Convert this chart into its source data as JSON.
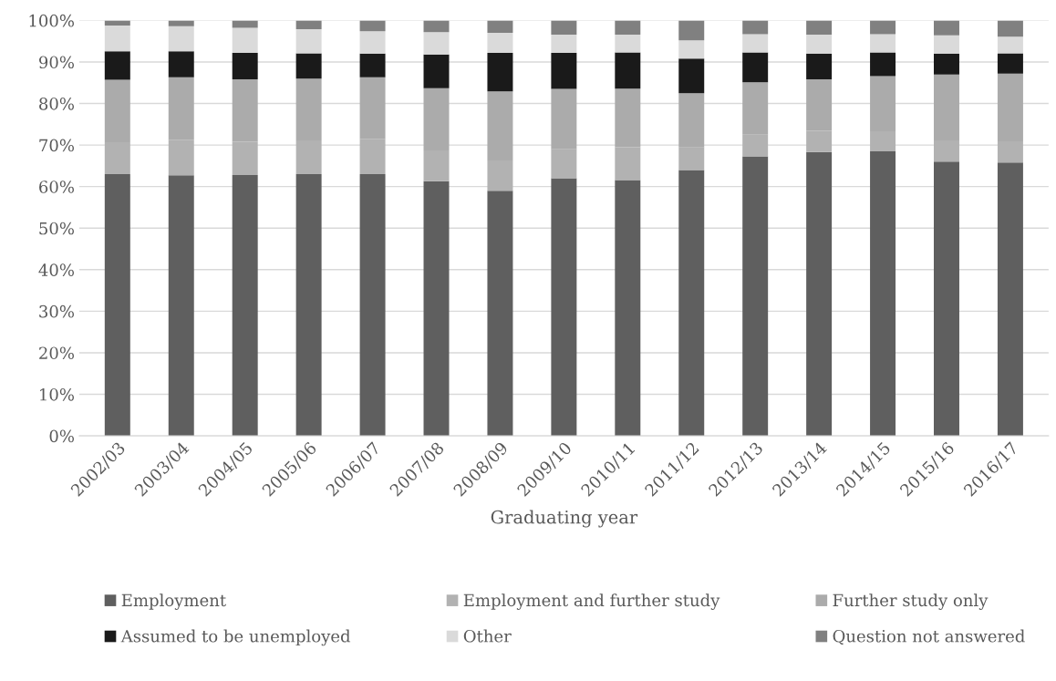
{
  "chart_data": {
    "type": "bar",
    "stacked": true,
    "xlabel": "Graduating year",
    "categories": [
      "2002/03",
      "2003/04",
      "2004/05",
      "2005/06",
      "2006/07",
      "2007/08",
      "2008/09",
      "2009/10",
      "2010/11",
      "2011/12",
      "2012/13",
      "2013/14",
      "2014/15",
      "2015/16",
      "2016/17"
    ],
    "series": [
      {
        "name": "Employment",
        "color": "#5f5f5f",
        "values": [
          63,
          62.7,
          62.8,
          63,
          63,
          61.3,
          59,
          62,
          61.6,
          64,
          67.3,
          68.3,
          68.5,
          66,
          65.8
        ]
      },
      {
        "name": "Employment and further study",
        "color": "#b2b2b2",
        "values": [
          7.7,
          8.6,
          8.0,
          8.1,
          8.5,
          7.4,
          7.3,
          7,
          7.9,
          5.4,
          5.2,
          5.1,
          4.8,
          5.1,
          5.1
        ]
      },
      {
        "name": "Further study only",
        "color": "#ababab",
        "values": [
          15,
          15,
          15,
          14.9,
          14.8,
          15,
          16.6,
          14.5,
          14.1,
          13.1,
          12.6,
          12.4,
          13.3,
          15.9,
          16.3
        ]
      },
      {
        "name": "Assumed to be unemployed",
        "color": "#1a1a1a",
        "values": [
          6.9,
          6.3,
          6.4,
          6.1,
          5.7,
          8.1,
          9.3,
          8.7,
          8.7,
          8.3,
          7.2,
          6.2,
          5.7,
          5,
          4.9
        ]
      },
      {
        "name": "Other",
        "color": "#dadada",
        "values": [
          6.2,
          6.0,
          6.0,
          5.8,
          5.4,
          5.4,
          4.8,
          4.4,
          4.3,
          4.4,
          4.4,
          4.6,
          4.4,
          4.4,
          4.0
        ]
      },
      {
        "name": "Question not answered",
        "color": "#808080",
        "values": [
          1.2,
          1.4,
          1.8,
          2.1,
          2.6,
          2.8,
          3.0,
          3.4,
          3.4,
          4.8,
          3.3,
          3.4,
          3.3,
          3.6,
          3.9
        ]
      }
    ],
    "ylim": [
      0,
      100
    ],
    "yticks": [
      {
        "value": 0,
        "label": "0%"
      },
      {
        "value": 10,
        "label": "10%"
      },
      {
        "value": 20,
        "label": "20%"
      },
      {
        "value": 30,
        "label": "30%"
      },
      {
        "value": 40,
        "label": "40%"
      },
      {
        "value": 50,
        "label": "50%"
      },
      {
        "value": 60,
        "label": "60%"
      },
      {
        "value": 70,
        "label": "70%"
      },
      {
        "value": 80,
        "label": "80%"
      },
      {
        "value": 90,
        "label": "90%"
      },
      {
        "value": 100,
        "label": "100%"
      }
    ],
    "grid": "y",
    "legend": "bottom"
  }
}
